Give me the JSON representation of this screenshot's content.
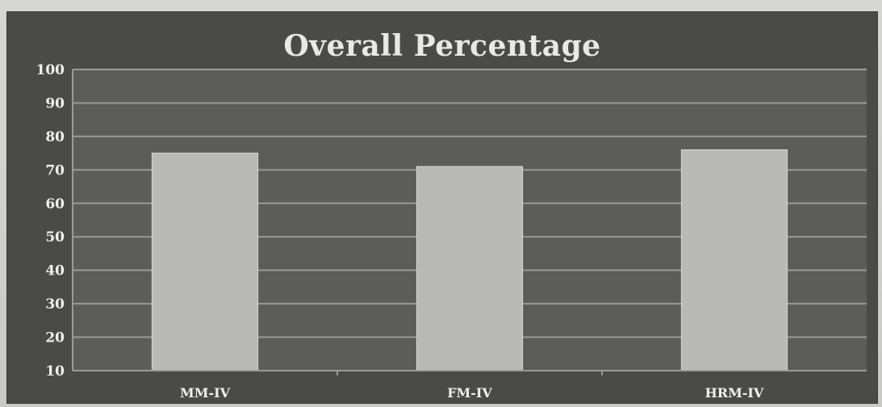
{
  "chart_data": {
    "type": "bar",
    "title": "Overall Percentage",
    "categories": [
      "MM-IV",
      "FM-IV",
      "HRM-IV"
    ],
    "values": [
      75,
      71,
      76
    ],
    "ylim": [
      10,
      100
    ],
    "yticks": [
      10,
      20,
      30,
      40,
      50,
      60,
      70,
      80,
      90,
      100
    ],
    "grid": true,
    "legend": "none",
    "colors": {
      "background": "#4a4a48",
      "plot_area": "#5c5c5a",
      "bar": "#b9b9b5",
      "grid": "#9a9a96",
      "text": "#f0f0ec"
    }
  }
}
